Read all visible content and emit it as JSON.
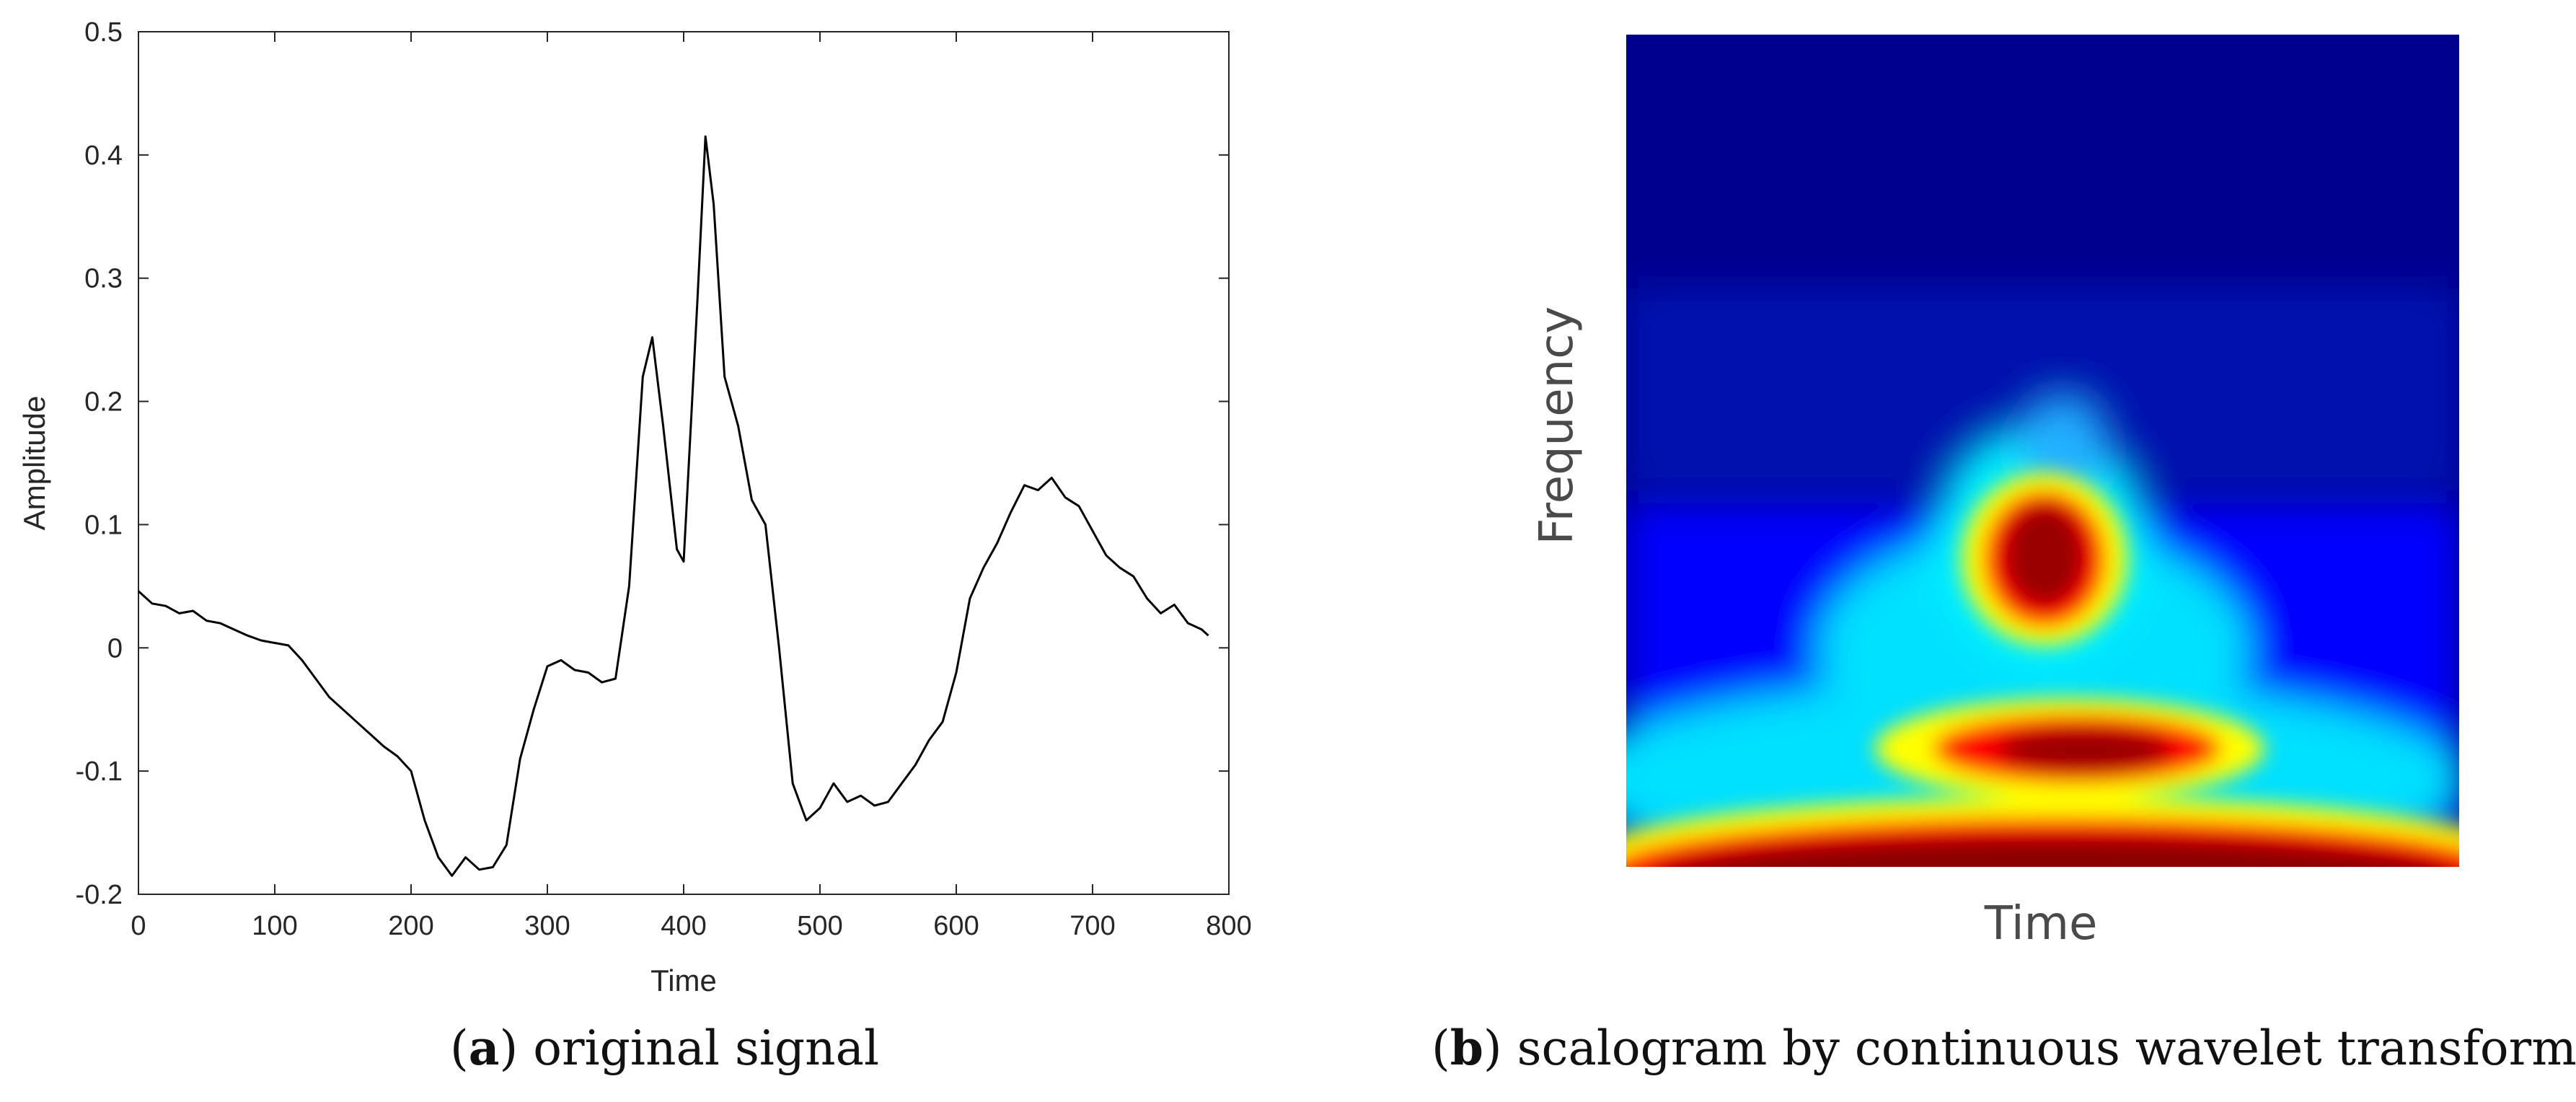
{
  "chart_data": [
    {
      "type": "line",
      "caption": {
        "letter": "a",
        "text": " original signal"
      },
      "xlabel": "Time",
      "ylabel": "Amplitude",
      "xlim": [
        0,
        800
      ],
      "ylim": [
        -0.2,
        0.5
      ],
      "xticks": [
        0,
        100,
        200,
        300,
        400,
        500,
        600,
        700,
        800
      ],
      "yticks": [
        -0.2,
        -0.1,
        0,
        0.1,
        0.2,
        0.3,
        0.4,
        0.5
      ],
      "grid": false,
      "series": [
        {
          "color": "#000000",
          "x": [
            0,
            10,
            20,
            30,
            40,
            50,
            60,
            70,
            80,
            90,
            100,
            110,
            120,
            130,
            140,
            150,
            160,
            170,
            180,
            190,
            200,
            210,
            220,
            230,
            240,
            250,
            260,
            270,
            280,
            290,
            300,
            310,
            320,
            330,
            340,
            350,
            360,
            370,
            377,
            385,
            395,
            400,
            410,
            416,
            422,
            430,
            440,
            450,
            460,
            470,
            480,
            490,
            500,
            510,
            520,
            530,
            540,
            550,
            560,
            570,
            580,
            590,
            600,
            610,
            620,
            630,
            640,
            650,
            660,
            670,
            680,
            690,
            700,
            710,
            720,
            730,
            740,
            750,
            760,
            770,
            780,
            785
          ],
          "y": [
            0.046,
            0.036,
            0.034,
            0.028,
            0.03,
            0.022,
            0.02,
            0.015,
            0.01,
            0.006,
            0.004,
            0.002,
            -0.01,
            -0.025,
            -0.04,
            -0.05,
            -0.06,
            -0.07,
            -0.08,
            -0.088,
            -0.1,
            -0.14,
            -0.17,
            -0.185,
            -0.17,
            -0.18,
            -0.178,
            -0.16,
            -0.09,
            -0.05,
            -0.015,
            -0.01,
            -0.018,
            -0.02,
            -0.028,
            -0.025,
            0.05,
            0.22,
            0.252,
            0.18,
            0.08,
            0.07,
            0.28,
            0.415,
            0.36,
            0.22,
            0.18,
            0.12,
            0.1,
            0.0,
            -0.11,
            -0.14,
            -0.13,
            -0.11,
            -0.125,
            -0.12,
            -0.128,
            -0.125,
            -0.11,
            -0.095,
            -0.075,
            -0.06,
            -0.02,
            0.04,
            0.065,
            0.085,
            0.11,
            0.132,
            0.128,
            0.138,
            0.122,
            0.115,
            0.095,
            0.075,
            0.065,
            0.058,
            0.04,
            0.028,
            0.035,
            0.02,
            0.015,
            0.01
          ]
        }
      ]
    },
    {
      "type": "heatmap",
      "caption": {
        "letter": "b",
        "text": " scalogram by continuous wavelet transform"
      },
      "xlabel": "Time",
      "ylabel": "Frequency",
      "colormap": [
        "#00008f",
        "#0000ff",
        "#00ffff",
        "#ffff00",
        "#ff0000",
        "#800000"
      ]
    }
  ]
}
